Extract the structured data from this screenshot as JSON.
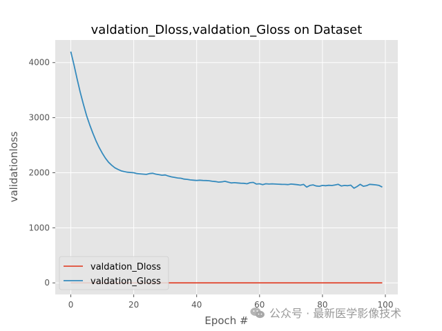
{
  "chart_data": {
    "type": "line",
    "title": "valdation_Dloss,valdation_Gloss on Dataset",
    "xlabel": "Epoch #",
    "ylabel": "validationloss",
    "xlim": [
      -4.95,
      103.95
    ],
    "ylim": [
      -210,
      4410
    ],
    "xticks": [
      0,
      20,
      40,
      60,
      80,
      100
    ],
    "yticks": [
      0,
      1000,
      2000,
      3000,
      4000
    ],
    "grid": true,
    "legend_position": "lower-left",
    "series": [
      {
        "name": "valdation_Dloss",
        "color": "#E24A33",
        "x": [
          0,
          99
        ],
        "y": [
          0,
          0
        ]
      },
      {
        "name": "valdation_Gloss",
        "color": "#348ABD",
        "x": [
          0,
          1,
          2,
          3,
          4,
          5,
          6,
          7,
          8,
          9,
          10,
          11,
          12,
          13,
          14,
          15,
          16,
          17,
          18,
          19,
          20,
          21,
          22,
          23,
          24,
          25,
          26,
          27,
          28,
          29,
          30,
          31,
          32,
          33,
          34,
          35,
          36,
          37,
          38,
          39,
          40,
          41,
          42,
          43,
          44,
          45,
          46,
          47,
          48,
          49,
          50,
          51,
          52,
          53,
          54,
          55,
          56,
          57,
          58,
          59,
          60,
          61,
          62,
          63,
          64,
          65,
          66,
          67,
          68,
          69,
          70,
          71,
          72,
          73,
          74,
          75,
          76,
          77,
          78,
          79,
          80,
          81,
          82,
          83,
          84,
          85,
          86,
          87,
          88,
          89,
          90,
          91,
          92,
          93,
          94,
          95,
          96,
          97,
          98,
          99
        ],
        "y": [
          4200,
          3960,
          3700,
          3460,
          3240,
          3040,
          2870,
          2720,
          2580,
          2460,
          2355,
          2265,
          2190,
          2135,
          2090,
          2060,
          2035,
          2020,
          2010,
          2005,
          2000,
          1985,
          1980,
          1975,
          1970,
          1985,
          1990,
          1975,
          1965,
          1955,
          1960,
          1940,
          1925,
          1915,
          1905,
          1900,
          1885,
          1880,
          1870,
          1865,
          1860,
          1865,
          1860,
          1858,
          1855,
          1845,
          1840,
          1830,
          1835,
          1845,
          1830,
          1815,
          1820,
          1815,
          1810,
          1808,
          1800,
          1820,
          1825,
          1795,
          1800,
          1785,
          1800,
          1795,
          1798,
          1795,
          1792,
          1790,
          1788,
          1785,
          1795,
          1790,
          1783,
          1775,
          1788,
          1740,
          1770,
          1780,
          1760,
          1755,
          1770,
          1765,
          1772,
          1768,
          1778,
          1790,
          1760,
          1770,
          1765,
          1775,
          1720,
          1750,
          1790,
          1755,
          1765,
          1790,
          1785,
          1780,
          1770,
          1740
        ]
      }
    ],
    "watermark": "公众号 · 最新医学影像技术"
  }
}
